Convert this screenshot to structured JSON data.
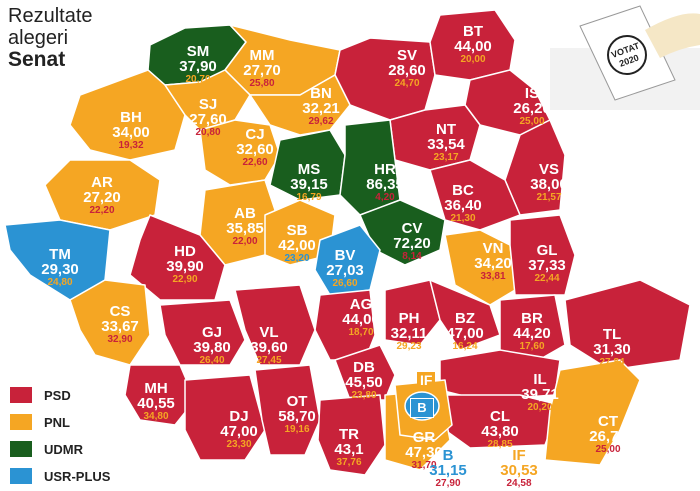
{
  "title": {
    "line1": "Rezultate",
    "line2": "alegeri",
    "line3": "Senat"
  },
  "colors": {
    "PSD": "#c8223a",
    "PNL": "#f5a623",
    "UDMR": "#195e1e",
    "USR-PLUS": "#2b93d3"
  },
  "legend": [
    {
      "party": "PSD",
      "color": "#c8223a"
    },
    {
      "party": "PNL",
      "color": "#f5a623"
    },
    {
      "party": "UDMR",
      "color": "#195e1e"
    },
    {
      "party": "USR-PLUS",
      "color": "#2b93d3"
    }
  ],
  "ballot_box": {
    "text1": "VOTAT",
    "text2": "2020"
  },
  "counties": {
    "SM": {
      "name": "SM",
      "winner": "UDMR",
      "first": "37,90",
      "second": "20,70",
      "second_color": "#f5a623"
    },
    "MM": {
      "name": "MM",
      "winner": "PNL",
      "first": "27,70",
      "second": "25,80",
      "second_color": "#c8223a"
    },
    "SV": {
      "name": "SV",
      "winner": "PSD",
      "first": "28,60",
      "second": "24,70",
      "second_color": "#f5a623"
    },
    "BT": {
      "name": "BT",
      "winner": "PSD",
      "first": "44,00",
      "second": "20,00",
      "second_color": "#f5a623"
    },
    "BH": {
      "name": "BH",
      "winner": "PNL",
      "first": "34,00",
      "second": "19,32",
      "second_color": "#c8223a"
    },
    "SJ": {
      "name": "SJ",
      "winner": "PNL",
      "first": "27,60",
      "second": "20,80",
      "second_color": "#c8223a"
    },
    "BN": {
      "name": "BN",
      "winner": "PNL",
      "first": "32,21",
      "second": "29,62",
      "second_color": "#c8223a"
    },
    "IS": {
      "name": "IS",
      "winner": "PSD",
      "first": "26,20",
      "second": "25,00",
      "second_color": "#f5a623"
    },
    "CJ": {
      "name": "CJ",
      "winner": "PNL",
      "first": "32,60",
      "second": "22,60",
      "second_color": "#c8223a"
    },
    "NT": {
      "name": "NT",
      "winner": "PSD",
      "first": "33,54",
      "second": "23,17",
      "second_color": "#f5a623"
    },
    "MS": {
      "name": "MS",
      "winner": "UDMR",
      "first": "39,15",
      "second": "16,79",
      "second_color": "#f5a623"
    },
    "HR": {
      "name": "HR",
      "winner": "UDMR",
      "first": "86,35",
      "second": "4,20",
      "second_color": "#c8223a"
    },
    "VS": {
      "name": "VS",
      "winner": "PSD",
      "first": "38,00",
      "second": "21,57",
      "second_color": "#f5a623"
    },
    "AR": {
      "name": "AR",
      "winner": "PNL",
      "first": "27,20",
      "second": "22,20",
      "second_color": "#c8223a"
    },
    "BC": {
      "name": "BC",
      "winner": "PSD",
      "first": "36,40",
      "second": "21,30",
      "second_color": "#f5a623"
    },
    "AB": {
      "name": "AB",
      "winner": "PNL",
      "first": "35,85",
      "second": "22,00",
      "second_color": "#c8223a"
    },
    "CV": {
      "name": "CV",
      "winner": "UDMR",
      "first": "72,20",
      "second": "8,14",
      "second_color": "#c8223a"
    },
    "TM": {
      "name": "TM",
      "winner": "USR-PLUS",
      "first": "29,30",
      "second": "24,80",
      "second_color": "#f5a623"
    },
    "HD": {
      "name": "HD",
      "winner": "PSD",
      "first": "39,90",
      "second": "22,90",
      "second_color": "#f5a623"
    },
    "SB": {
      "name": "SB",
      "winner": "PNL",
      "first": "42,00",
      "second": "23,20",
      "second_color": "#2b93d3"
    },
    "BV": {
      "name": "BV",
      "winner": "USR-PLUS",
      "first": "27,03",
      "second": "26,60",
      "second_color": "#f5a623"
    },
    "VN": {
      "name": "VN",
      "winner": "PNL",
      "first": "34,20",
      "second": "33,81",
      "second_color": "#c8223a"
    },
    "GL": {
      "name": "GL",
      "winner": "PSD",
      "first": "37,33",
      "second": "22,44",
      "second_color": "#f5a623"
    },
    "CS": {
      "name": "CS",
      "winner": "PNL",
      "first": "33,67",
      "second": "32,90",
      "second_color": "#c8223a"
    },
    "AG": {
      "name": "AG",
      "winner": "PSD",
      "first": "44,00",
      "second": "18,70",
      "second_color": "#f5a623"
    },
    "GJ": {
      "name": "GJ",
      "winner": "PSD",
      "first": "39,80",
      "second": "26,40",
      "second_color": "#f5a623"
    },
    "VL": {
      "name": "VL",
      "winner": "PSD",
      "first": "39,60",
      "second": "27,45",
      "second_color": "#f5a623"
    },
    "PH": {
      "name": "PH",
      "winner": "PSD",
      "first": "32,11",
      "second": "29,23",
      "second_color": "#f5a623"
    },
    "BZ": {
      "name": "BZ",
      "winner": "PSD",
      "first": "47,00",
      "second": "16,24",
      "second_color": "#f5a623"
    },
    "BR": {
      "name": "BR",
      "winner": "PSD",
      "first": "44,20",
      "second": "17,60",
      "second_color": "#f5a623"
    },
    "TL": {
      "name": "TL",
      "winner": "PSD",
      "first": "31,30",
      "second": "27,84",
      "second_color": "#f5a623"
    },
    "DB": {
      "name": "DB",
      "winner": "PSD",
      "first": "45,50",
      "second": "23,80",
      "second_color": "#f5a623"
    },
    "MH": {
      "name": "MH",
      "winner": "PSD",
      "first": "40,55",
      "second": "34,80",
      "second_color": "#f5a623"
    },
    "IL": {
      "name": "IL",
      "winner": "PSD",
      "first": "39,71",
      "second": "20,20",
      "second_color": "#f5a623"
    },
    "DJ": {
      "name": "DJ",
      "winner": "PSD",
      "first": "47,00",
      "second": "23,30",
      "second_color": "#f5a623"
    },
    "OT": {
      "name": "OT",
      "winner": "PSD",
      "first": "58,70",
      "second": "19,16",
      "second_color": "#f5a623"
    },
    "CL": {
      "name": "CL",
      "winner": "PSD",
      "first": "43,80",
      "second": "28,85",
      "second_color": "#f5a623"
    },
    "TR": {
      "name": "TR",
      "winner": "PSD",
      "first": "43,1",
      "second": "37,76",
      "second_color": "#f5a623"
    },
    "GR": {
      "name": "GR",
      "winner": "PNL",
      "first": "47,30",
      "second": "31,70",
      "second_color": "#c8223a"
    },
    "CT": {
      "name": "CT",
      "winner": "PNL",
      "first": "26,70",
      "second": "25,00",
      "second_color": "#c8223a"
    },
    "B": {
      "name": "B",
      "winner": "USR-PLUS",
      "first": "31,15",
      "second": "27,90",
      "second_color": "#c8223a",
      "name_color": "#2b93d3",
      "first_color": "#2b93d3"
    },
    "IF": {
      "name": "IF",
      "winner": "PNL",
      "first": "30,53",
      "second": "24,58",
      "second_color": "#c8223a",
      "name_color": "#f5a623",
      "first_color": "#f5a623"
    }
  },
  "map_labels": {
    "IF": "IF",
    "B": "B"
  }
}
